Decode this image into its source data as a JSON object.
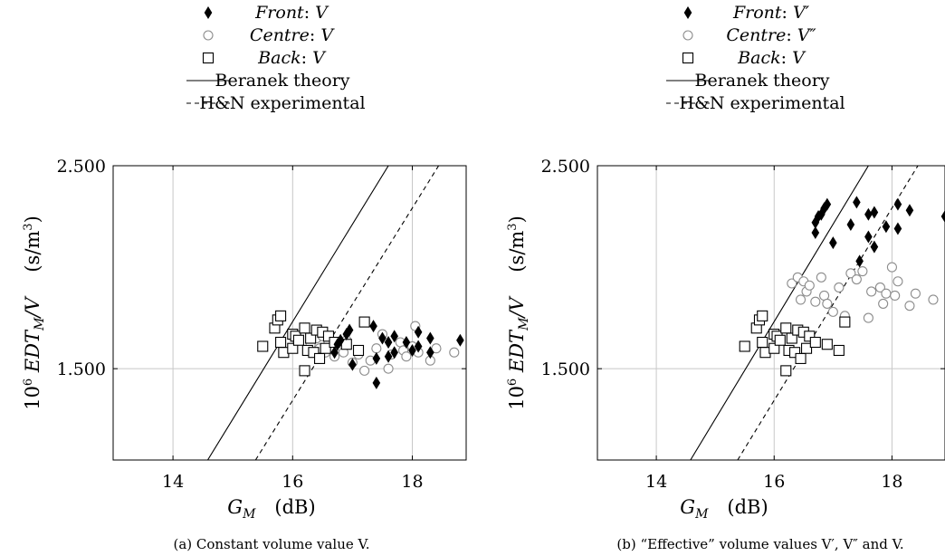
{
  "chart_data": [
    {
      "type": "scatter",
      "caption": "(a) Constant volume value V.",
      "xlabel": "G_M (dB)",
      "ylabel": "10^6 EDT_M/V (s/m^3)",
      "xlim": [
        13,
        18.9
      ],
      "ylim": [
        1.05,
        2.5
      ],
      "xticks": [
        "14",
        "16",
        "18"
      ],
      "yticks": [
        "1.500",
        "2.500"
      ],
      "grid": true,
      "legend_position": "top",
      "legend": [
        {
          "key": "front",
          "label": "Front: V"
        },
        {
          "key": "centre",
          "label": "Centre: V"
        },
        {
          "key": "back",
          "label": "Back: V"
        },
        {
          "key": "beranek",
          "label": "Beranek theory"
        },
        {
          "key": "hn",
          "label": "H&N experimental"
        }
      ],
      "series": [
        {
          "key": "front",
          "marker": "diamond-filled",
          "x": [
            16.7,
            16.75,
            16.8,
            16.9,
            16.95,
            17.0,
            17.35,
            17.4,
            17.4,
            17.5,
            17.6,
            17.6,
            17.7,
            17.7,
            17.9,
            18.0,
            18.1,
            18.1,
            18.3,
            18.3,
            18.8
          ],
          "y": [
            1.58,
            1.62,
            1.64,
            1.67,
            1.69,
            1.52,
            1.71,
            1.55,
            1.43,
            1.65,
            1.56,
            1.63,
            1.58,
            1.66,
            1.63,
            1.59,
            1.68,
            1.61,
            1.58,
            1.65,
            1.64
          ]
        },
        {
          "key": "centre",
          "marker": "circle-open",
          "x": [
            16.3,
            16.4,
            16.45,
            16.5,
            16.55,
            16.6,
            16.7,
            16.8,
            16.85,
            16.9,
            17.0,
            17.1,
            17.2,
            17.3,
            17.4,
            17.5,
            17.6,
            17.65,
            17.8,
            17.85,
            17.9,
            18.0,
            18.05,
            18.1,
            18.3,
            18.4,
            18.7
          ],
          "y": [
            1.62,
            1.65,
            1.6,
            1.66,
            1.58,
            1.63,
            1.56,
            1.61,
            1.58,
            1.64,
            1.53,
            1.57,
            1.49,
            1.54,
            1.6,
            1.67,
            1.5,
            1.57,
            1.63,
            1.59,
            1.56,
            1.61,
            1.71,
            1.58,
            1.54,
            1.6,
            1.58
          ]
        },
        {
          "key": "back",
          "marker": "square-open",
          "x": [
            15.5,
            15.7,
            15.75,
            15.8,
            15.8,
            15.85,
            16.0,
            16.0,
            16.05,
            16.1,
            16.2,
            16.2,
            16.25,
            16.3,
            16.35,
            16.4,
            16.45,
            16.5,
            16.55,
            16.6,
            16.7,
            16.9,
            17.1,
            17.2
          ],
          "y": [
            1.61,
            1.7,
            1.74,
            1.76,
            1.63,
            1.58,
            1.67,
            1.6,
            1.66,
            1.64,
            1.7,
            1.49,
            1.59,
            1.65,
            1.58,
            1.69,
            1.55,
            1.68,
            1.6,
            1.66,
            1.63,
            1.62,
            1.59,
            1.73
          ]
        }
      ],
      "lines": [
        {
          "key": "beranek",
          "style": "solid",
          "x": [
            14.58,
            17.6
          ],
          "y": [
            1.05,
            2.5
          ]
        },
        {
          "key": "hn",
          "style": "dashed",
          "x": [
            15.38,
            18.44
          ],
          "y": [
            1.05,
            2.5
          ]
        }
      ]
    },
    {
      "type": "scatter",
      "caption": "(b) “Effective” volume values V′, V″ and V.",
      "xlabel": "G_M (dB)",
      "ylabel": "10^6 EDT_M/V (s/m^3)",
      "xlim": [
        13,
        18.9
      ],
      "ylim": [
        1.05,
        2.5
      ],
      "xticks": [
        "14",
        "16",
        "18"
      ],
      "yticks": [
        "1.500",
        "2.500"
      ],
      "grid": true,
      "legend_position": "top",
      "legend": [
        {
          "key": "front",
          "label": "Front: V′"
        },
        {
          "key": "centre",
          "label": "Centre: V″"
        },
        {
          "key": "back",
          "label": "Back: V"
        },
        {
          "key": "beranek",
          "label": "Beranek theory"
        },
        {
          "key": "hn",
          "label": "H&N experimental"
        }
      ],
      "series": [
        {
          "key": "front",
          "marker": "diamond-filled",
          "x": [
            16.7,
            16.7,
            16.75,
            16.8,
            16.85,
            16.9,
            17.0,
            17.3,
            17.4,
            17.45,
            17.6,
            17.6,
            17.7,
            17.7,
            17.9,
            18.1,
            18.1,
            18.3,
            18.9
          ],
          "y": [
            2.17,
            2.22,
            2.25,
            2.26,
            2.29,
            2.31,
            2.12,
            2.21,
            2.32,
            2.03,
            2.15,
            2.26,
            2.27,
            2.1,
            2.2,
            2.31,
            2.19,
            2.28,
            2.25
          ]
        },
        {
          "key": "centre",
          "marker": "circle-open",
          "x": [
            16.3,
            16.4,
            16.45,
            16.5,
            16.55,
            16.6,
            16.7,
            16.8,
            16.85,
            16.9,
            17.0,
            17.1,
            17.2,
            17.3,
            17.4,
            17.5,
            17.6,
            17.65,
            17.8,
            17.85,
            17.9,
            18.0,
            18.05,
            18.1,
            18.3,
            18.4,
            18.7
          ],
          "y": [
            1.92,
            1.95,
            1.84,
            1.93,
            1.88,
            1.91,
            1.83,
            1.95,
            1.86,
            1.82,
            1.78,
            1.9,
            1.76,
            1.97,
            1.94,
            1.98,
            1.75,
            1.88,
            1.9,
            1.82,
            1.87,
            2.0,
            1.86,
            1.93,
            1.81,
            1.87,
            1.84
          ]
        },
        {
          "key": "back",
          "marker": "square-open",
          "x": [
            15.5,
            15.7,
            15.75,
            15.8,
            15.8,
            15.85,
            16.0,
            16.0,
            16.05,
            16.1,
            16.2,
            16.2,
            16.25,
            16.3,
            16.35,
            16.4,
            16.45,
            16.5,
            16.55,
            16.6,
            16.7,
            16.9,
            17.1,
            17.2
          ],
          "y": [
            1.61,
            1.7,
            1.74,
            1.76,
            1.63,
            1.58,
            1.67,
            1.6,
            1.66,
            1.64,
            1.7,
            1.49,
            1.59,
            1.65,
            1.58,
            1.69,
            1.55,
            1.68,
            1.6,
            1.66,
            1.63,
            1.62,
            1.59,
            1.73
          ]
        }
      ],
      "lines": [
        {
          "key": "beranek",
          "style": "solid",
          "x": [
            14.58,
            17.6
          ],
          "y": [
            1.05,
            2.5
          ]
        },
        {
          "key": "hn",
          "style": "dashed",
          "x": [
            15.38,
            18.44
          ],
          "y": [
            1.05,
            2.5
          ]
        }
      ]
    }
  ]
}
